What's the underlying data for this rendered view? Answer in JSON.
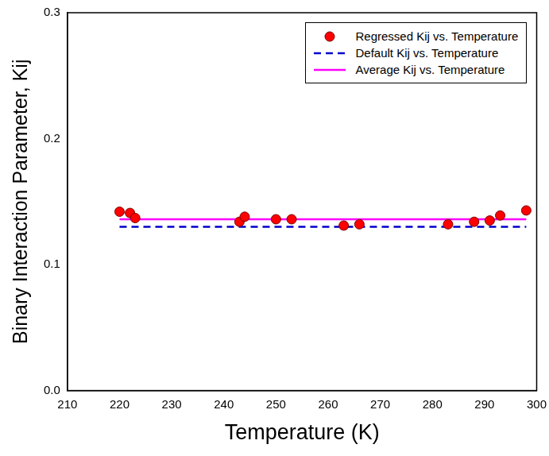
{
  "chart_data": {
    "type": "scatter",
    "x_label": "Temperature (K)",
    "y_label": "Binary Interaction Parameter, Kij",
    "xlim": [
      210,
      300
    ],
    "xticks": [
      210,
      220,
      230,
      240,
      250,
      260,
      270,
      280,
      290,
      300
    ],
    "ylim": [
      0,
      0.3
    ],
    "yticks": [
      {
        "value": 0,
        "label": "0.0"
      },
      0.1,
      0.2,
      0.3
    ],
    "grid": false,
    "legend": "upper right",
    "series": [
      {
        "name": "Regressed Kij vs. Temperature",
        "type": "scatter",
        "color": "#ff0000",
        "marker": "circle",
        "x": [
          220,
          222,
          223,
          243,
          244,
          250,
          253,
          263,
          266,
          283,
          288,
          291,
          293,
          298
        ],
        "values": [
          0.142,
          0.141,
          0.137,
          0.134,
          0.138,
          0.136,
          0.136,
          0.131,
          0.132,
          0.132,
          0.134,
          0.135,
          0.139,
          0.143
        ]
      },
      {
        "name": "Default Kij vs. Temperature",
        "type": "line",
        "color": "#0000cc",
        "line_style": "dashed",
        "x": [
          220,
          298
        ],
        "values": [
          0.13,
          0.13
        ]
      },
      {
        "name": "Average Kij vs. Temperature",
        "type": "line",
        "color": "#ff00ff",
        "line_style": "solid",
        "x": [
          220,
          298
        ],
        "values": [
          0.136,
          0.136
        ]
      }
    ]
  }
}
